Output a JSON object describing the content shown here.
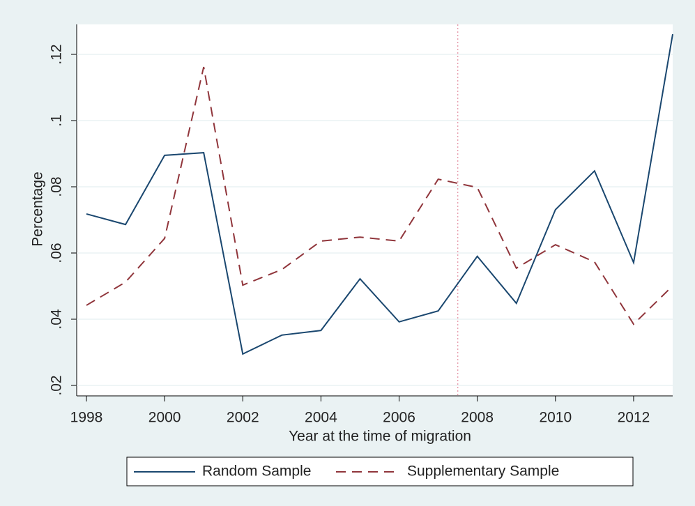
{
  "chart_data": {
    "type": "line",
    "x_label": "Year at the time of migration",
    "y_label": "Percentage",
    "x": [
      1998,
      1999,
      2000,
      2001,
      2002,
      2003,
      2004,
      2005,
      2006,
      2007,
      2008,
      2009,
      2010,
      2011,
      2012,
      2013
    ],
    "series": [
      {
        "name": "Random Sample",
        "color": "#1a476f",
        "dash": "solid",
        "values": [
          0.0718,
          0.0686,
          0.0895,
          0.0903,
          0.0295,
          0.0352,
          0.0366,
          0.0522,
          0.0392,
          0.0425,
          0.059,
          0.0448,
          0.0731,
          0.0848,
          0.0571,
          0.1261
        ]
      },
      {
        "name": "Supplementary Sample",
        "color": "#90353b",
        "dash": "dashed",
        "values": [
          0.0442,
          0.0512,
          0.0644,
          0.1162,
          0.0503,
          0.055,
          0.0636,
          0.0648,
          0.0636,
          0.0823,
          0.0798,
          0.0554,
          0.0625,
          0.0573,
          0.0385,
          0.0501
        ]
      }
    ],
    "xlim": [
      1998,
      2013
    ],
    "ylim": [
      0.02,
      0.12
    ],
    "xticks": [
      1998,
      2000,
      2002,
      2004,
      2006,
      2008,
      2010,
      2012
    ],
    "yticks": [
      {
        "value": 0.02,
        "label": ".02"
      },
      {
        "value": 0.04,
        "label": ".04"
      },
      {
        "value": 0.06,
        "label": ".06"
      },
      {
        "value": 0.08,
        "label": ".08"
      },
      {
        "value": 0.1,
        "label": ".1"
      },
      {
        "value": 0.12,
        "label": ".12"
      }
    ],
    "reference_line_x": 2007.5,
    "reference_line_color": "#e8a0b0",
    "grid": true,
    "legend": "bottom"
  }
}
